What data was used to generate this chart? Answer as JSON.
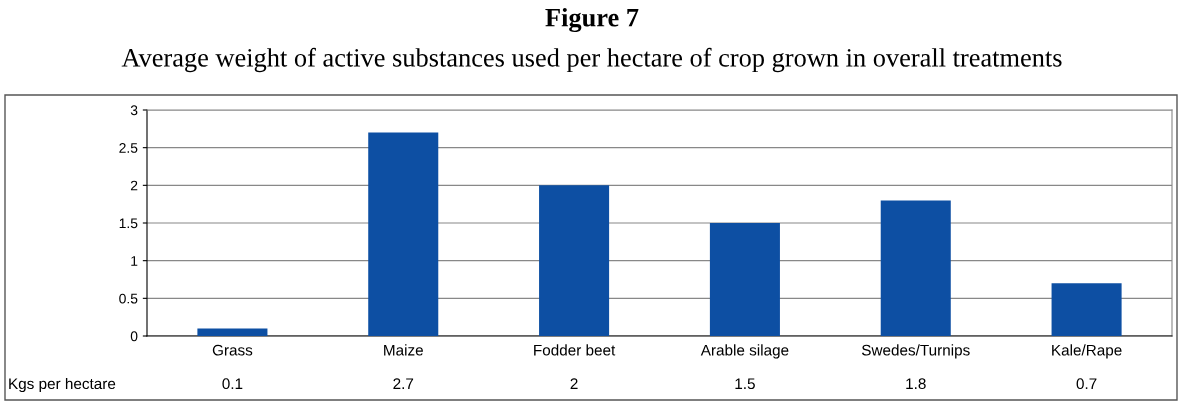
{
  "chart_data": {
    "type": "bar",
    "title": "Figure 7",
    "subtitle": "Average weight of active substances used per hectare of crop grown in overall treatments",
    "categories": [
      "Grass",
      "Maize",
      "Fodder beet",
      "Arable silage",
      "Swedes/Turnips",
      "Kale/Rape"
    ],
    "values": [
      0.1,
      2.7,
      2,
      1.5,
      1.8,
      0.7
    ],
    "color": "#0d4fa3",
    "ylim": [
      0,
      3
    ],
    "yticks": [
      0,
      0.5,
      1,
      1.5,
      2,
      2.5,
      3
    ],
    "grid": "y",
    "data_labels": true,
    "annotations": [
      "Kgs per hectare"
    ]
  }
}
